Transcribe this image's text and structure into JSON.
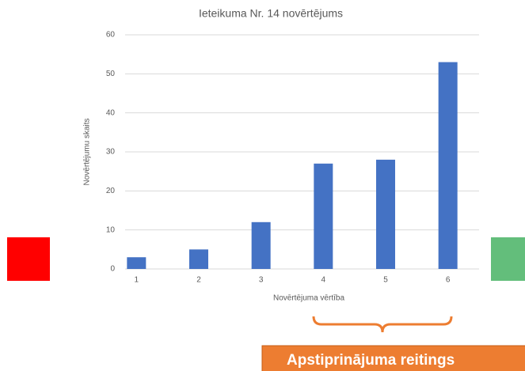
{
  "chart_data": {
    "type": "bar",
    "title": "Ieteikuma Nr. 14 novērtējums",
    "x_label": "Novērtējuma vērtība",
    "y_label": "Novērtējumu skaits",
    "categories": [
      "1",
      "2",
      "3",
      "4",
      "5",
      "6"
    ],
    "values": [
      3,
      5,
      12,
      27,
      28,
      53
    ],
    "color": "#4472c4",
    "ylim": [
      0,
      60
    ],
    "yticks": [
      0,
      10,
      20,
      30,
      40,
      50,
      60
    ],
    "grid": true
  },
  "annotation": {
    "label": "Apstiprinājuma reitings"
  }
}
